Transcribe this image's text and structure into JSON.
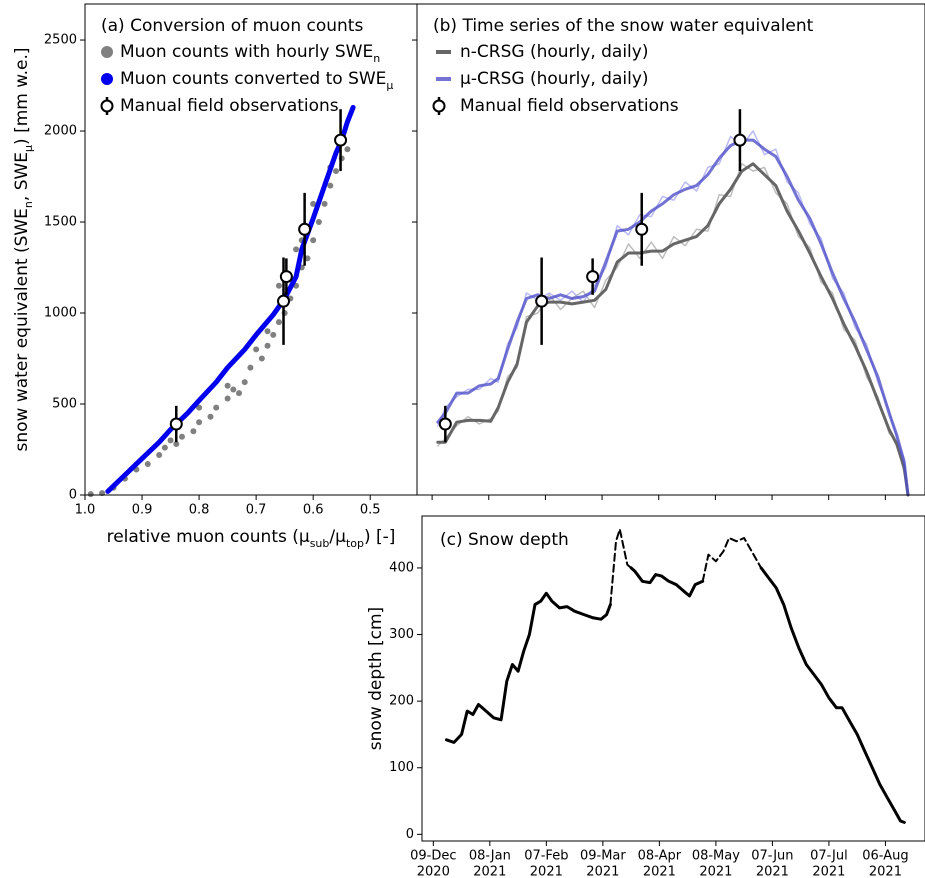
{
  "chart_data": [
    {
      "type": "scatter",
      "title": "(a) Conversion of muon counts",
      "xlabel": [
        "relative muon counts (μ",
        "sub",
        "/μ",
        "top",
        ") [-]"
      ],
      "ylabel": [
        "snow water equivalent (SWE",
        "n",
        ", SWE",
        "μ",
        ") [mm w.e.]"
      ],
      "xlim": [
        1.0,
        0.418
      ],
      "ylim": [
        0,
        2698
      ],
      "xticks": [
        {
          "value": 1,
          "label": "1.0"
        },
        0.9,
        0.8,
        0.7,
        0.6,
        0.5
      ],
      "yticks": [
        0,
        500,
        1000,
        1500,
        2000,
        2500
      ],
      "series": [
        {
          "name": "Muon counts with hourly SWE",
          "name_sub": "n",
          "mode": "markers",
          "color": "#808080",
          "x": [
            0.99,
            0.97,
            0.95,
            0.93,
            0.91,
            0.89,
            0.87,
            0.86,
            0.84,
            0.83,
            0.81,
            0.8,
            0.78,
            0.77,
            0.75,
            0.74,
            0.72,
            0.71,
            0.69,
            0.68,
            0.67,
            0.66,
            0.65,
            0.64,
            0.63,
            0.62,
            0.61,
            0.6,
            0.59,
            0.58,
            0.57,
            0.56,
            0.55,
            0.54,
            0.66,
            0.63,
            0.6,
            0.57,
            0.7,
            0.75,
            0.8,
            0.85,
            0.73,
            0.68,
            0.62
          ],
          "values": [
            5,
            10,
            40,
            90,
            140,
            170,
            220,
            260,
            280,
            320,
            350,
            400,
            430,
            480,
            530,
            580,
            620,
            700,
            750,
            820,
            880,
            950,
            1000,
            1080,
            1150,
            1250,
            1300,
            1400,
            1500,
            1600,
            1700,
            1780,
            1850,
            1900,
            1150,
            1350,
            1600,
            1800,
            800,
            600,
            480,
            300,
            560,
            900,
            1400
          ]
        },
        {
          "name": "Muon counts converted to SWE",
          "name_sub": "μ",
          "mode": "line",
          "color": "#0000ee",
          "linewidth": 5,
          "x": [
            0.96,
            0.93,
            0.9,
            0.87,
            0.85,
            0.82,
            0.8,
            0.77,
            0.75,
            0.72,
            0.7,
            0.67,
            0.65,
            0.63,
            0.62,
            0.6,
            0.58,
            0.56,
            0.55,
            0.54,
            0.53
          ],
          "values": [
            20,
            110,
            200,
            290,
            360,
            450,
            520,
            620,
            700,
            800,
            880,
            990,
            1080,
            1200,
            1350,
            1520,
            1700,
            1880,
            1950,
            2050,
            2130
          ]
        },
        {
          "name": "Manual field observations",
          "mode": "errorbar",
          "color": "#000000",
          "x": [
            0.84,
            0.652,
            0.647,
            0.615,
            0.552
          ],
          "values": [
            390,
            1065,
            1200,
            1460,
            1950
          ],
          "errors": [
            100,
            240,
            100,
            200,
            170
          ]
        }
      ]
    },
    {
      "type": "line",
      "title": "(b) Time series of the snow water equivalent",
      "xlim": [
        "2020-12-01",
        "2021-08-27"
      ],
      "ylim": [
        0,
        2698
      ],
      "tick_labels": false,
      "xticks": [
        "2020-12-09",
        "2021-01-08",
        "2021-02-07",
        "2021-03-09",
        "2021-04-08",
        "2021-05-08",
        "2021-06-07",
        "2021-07-07",
        "2021-08-06"
      ],
      "yticks": [
        0,
        500,
        1000,
        1500,
        2000,
        2500
      ],
      "x": [
        "2020-12-12",
        "2020-12-16",
        "2020-12-22",
        "2020-12-28",
        "2021-01-03",
        "2021-01-09",
        "2021-01-13",
        "2021-01-18",
        "2021-01-23",
        "2021-01-28",
        "2021-02-03",
        "2021-02-09",
        "2021-02-15",
        "2021-02-21",
        "2021-02-27",
        "2021-03-05",
        "2021-03-11",
        "2021-03-17",
        "2021-03-23",
        "2021-03-29",
        "2021-04-04",
        "2021-04-10",
        "2021-04-16",
        "2021-04-22",
        "2021-04-28",
        "2021-05-04",
        "2021-05-10",
        "2021-05-16",
        "2021-05-22",
        "2021-05-28",
        "2021-06-03",
        "2021-06-09",
        "2021-06-15",
        "2021-06-21",
        "2021-06-27",
        "2021-07-03",
        "2021-07-09",
        "2021-07-15",
        "2021-07-21",
        "2021-07-27",
        "2021-08-02",
        "2021-08-08",
        "2021-08-12",
        "2021-08-16",
        "2021-08-18"
      ],
      "series": [
        {
          "mode": "line",
          "color": "#bdbdbd",
          "linewidth": 1.5,
          "values": [
            270,
            310,
            380,
            430,
            390,
            420,
            460,
            650,
            700,
            980,
            1000,
            1100,
            1020,
            1080,
            1120,
            1030,
            1180,
            1250,
            1380,
            1300,
            1390,
            1300,
            1420,
            1370,
            1460,
            1450,
            1650,
            1640,
            1820,
            1780,
            1800,
            1660,
            1600,
            1420,
            1360,
            1170,
            1110,
            910,
            850,
            650,
            540,
            340,
            290,
            120,
            0
          ]
        },
        {
          "mode": "line",
          "color": "#a9a9f2",
          "linewidth": 1.5,
          "alpha": 0.8,
          "values": [
            380,
            480,
            540,
            580,
            580,
            640,
            620,
            830,
            920,
            1110,
            1070,
            1110,
            1070,
            1120,
            1060,
            1150,
            1250,
            1480,
            1430,
            1540,
            1530,
            1640,
            1620,
            1720,
            1670,
            1800,
            1820,
            1970,
            1920,
            2000,
            1870,
            1900,
            1720,
            1660,
            1490,
            1410,
            1190,
            1110,
            920,
            830,
            620,
            470,
            310,
            200,
            0
          ]
        },
        {
          "name": "n-CRSG (hourly, daily)",
          "mode": "line",
          "color": "#666666",
          "linewidth": 3,
          "values": [
            290,
            290,
            400,
            410,
            410,
            405,
            480,
            620,
            720,
            950,
            1040,
            1060,
            1060,
            1050,
            1060,
            1070,
            1130,
            1280,
            1330,
            1330,
            1340,
            1340,
            1380,
            1400,
            1420,
            1480,
            1600,
            1680,
            1780,
            1820,
            1760,
            1700,
            1560,
            1450,
            1330,
            1200,
            1080,
            940,
            820,
            680,
            520,
            360,
            280,
            150,
            0
          ]
        },
        {
          "name": "μ-CRSG (hourly, daily)",
          "mode": "line",
          "color": "#5050c8",
          "linewidth": 3,
          "alpha": 0.8,
          "values": [
            400,
            450,
            560,
            560,
            600,
            610,
            640,
            800,
            950,
            1080,
            1100,
            1080,
            1100,
            1080,
            1090,
            1120,
            1280,
            1450,
            1460,
            1500,
            1560,
            1600,
            1650,
            1680,
            1700,
            1760,
            1850,
            1920,
            1950,
            1950,
            1900,
            1860,
            1750,
            1620,
            1520,
            1380,
            1220,
            1080,
            950,
            800,
            650,
            450,
            330,
            180,
            0
          ]
        },
        {
          "name": "Manual field observations",
          "mode": "errorbar",
          "color": "#000000",
          "x": [
            "2020-12-16",
            "2021-02-05",
            "2021-03-04",
            "2021-03-30",
            "2021-05-21"
          ],
          "values": [
            390,
            1065,
            1200,
            1460,
            1950
          ],
          "errors": [
            100,
            240,
            100,
            200,
            170
          ]
        }
      ]
    },
    {
      "type": "line",
      "title": "(c) Snow depth",
      "ylabel": [
        "snow depth [cm]"
      ],
      "xlim": [
        "2020-12-03",
        "2021-08-27"
      ],
      "ylim": [
        -10,
        478
      ],
      "xticks": [
        {
          "value": "2020-12-09",
          "label": [
            "09-Dec",
            "2020"
          ]
        },
        {
          "value": "2021-01-08",
          "label": [
            "08-Jan",
            "2021"
          ]
        },
        {
          "value": "2021-02-07",
          "label": [
            "07-Feb",
            "2021"
          ]
        },
        {
          "value": "2021-03-09",
          "label": [
            "09-Mar",
            "2021"
          ]
        },
        {
          "value": "2021-04-08",
          "label": [
            "08-Apr",
            "2021"
          ]
        },
        {
          "value": "2021-05-08",
          "label": [
            "08-May",
            "2021"
          ]
        },
        {
          "value": "2021-06-07",
          "label": [
            "07-Jun",
            "2021"
          ]
        },
        {
          "value": "2021-07-07",
          "label": [
            "07-Jul",
            "2021"
          ]
        },
        {
          "value": "2021-08-06",
          "label": [
            "06-Aug",
            "2021"
          ]
        }
      ],
      "yticks": [
        0,
        100,
        200,
        300,
        400
      ],
      "x": [
        "2020-12-16",
        "2020-12-20",
        "2020-12-24",
        "2020-12-27",
        "2020-12-30",
        "2021-01-02",
        "2021-01-06",
        "2021-01-10",
        "2021-01-14",
        "2021-01-17",
        "2021-01-20",
        "2021-01-23",
        "2021-01-26",
        "2021-01-29",
        "2021-02-01",
        "2021-02-04",
        "2021-02-07",
        "2021-02-10",
        "2021-02-14",
        "2021-02-18",
        "2021-02-22",
        "2021-02-27",
        "2021-03-04",
        "2021-03-08",
        "2021-03-11",
        "2021-03-13",
        "2021-03-16",
        "2021-03-18",
        "2021-03-22",
        "2021-03-24",
        "2021-03-26",
        "2021-03-30",
        "2021-04-03",
        "2021-04-06",
        "2021-04-09",
        "2021-04-13",
        "2021-04-17",
        "2021-04-21",
        "2021-04-24",
        "2021-04-27",
        "2021-05-01",
        "2021-05-04",
        "2021-05-08",
        "2021-05-12",
        "2021-05-15",
        "2021-05-19",
        "2021-05-23",
        "2021-05-27",
        "2021-06-01",
        "2021-06-05",
        "2021-06-09",
        "2021-06-13",
        "2021-06-17",
        "2021-06-21",
        "2021-06-25",
        "2021-06-29",
        "2021-07-03",
        "2021-07-07",
        "2021-07-11",
        "2021-07-14",
        "2021-07-18",
        "2021-07-22",
        "2021-07-26",
        "2021-07-30",
        "2021-08-03",
        "2021-08-07",
        "2021-08-11",
        "2021-08-14",
        "2021-08-16"
      ],
      "series": [
        {
          "mode": "line",
          "color": "#000000",
          "linewidth": 3,
          "values": [
            142,
            138,
            150,
            185,
            180,
            195,
            185,
            175,
            172,
            230,
            255,
            245,
            275,
            300,
            345,
            350,
            362,
            350,
            340,
            342,
            335,
            330,
            325,
            323,
            330,
            345,
            null,
            null,
            null,
            400,
            395,
            380,
            378,
            390,
            388,
            380,
            375,
            365,
            358,
            375,
            380,
            null,
            null,
            null,
            null,
            null,
            null,
            null,
            400,
            385,
            370,
            345,
            310,
            280,
            255,
            240,
            225,
            205,
            190,
            190,
            170,
            150,
            125,
            100,
            75,
            55,
            35,
            20,
            18
          ]
        },
        {
          "mode": "line",
          "color": "#000000",
          "linewidth": 2,
          "dash": true,
          "values": [
            null,
            null,
            null,
            null,
            null,
            null,
            null,
            null,
            null,
            null,
            null,
            null,
            null,
            null,
            null,
            null,
            null,
            null,
            null,
            null,
            null,
            null,
            null,
            null,
            null,
            345,
            440,
            458,
            405,
            400,
            null,
            null,
            null,
            null,
            null,
            null,
            null,
            null,
            null,
            null,
            380,
            420,
            410,
            425,
            445,
            440,
            445,
            425,
            400,
            null,
            null,
            null,
            null,
            null,
            null,
            null,
            null,
            null,
            null,
            null,
            null,
            null,
            null,
            null,
            null,
            null,
            null,
            null,
            null
          ]
        }
      ]
    }
  ]
}
